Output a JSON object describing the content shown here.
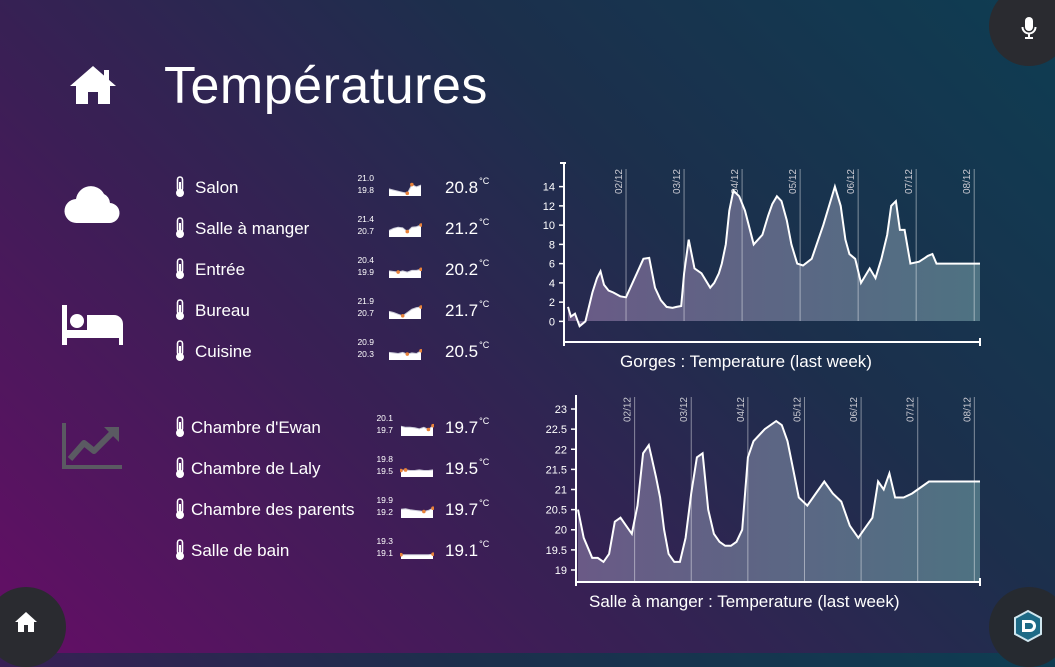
{
  "page": {
    "title": "Températures"
  },
  "sidebar": {
    "icons": [
      "home-icon",
      "cloud-icon",
      "bed-icon",
      "chart-trend-icon"
    ]
  },
  "corners": {
    "top_right": "microphone-icon",
    "bottom_left": "home-icon",
    "bottom_right": "app-logo-icon"
  },
  "unit": "°C",
  "rooms_group1": [
    {
      "name": "Salon",
      "max": "21.0",
      "min": "19.8",
      "value": "20.8",
      "spark": [
        0.55,
        0.45,
        0.35,
        0.25,
        0.15,
        0.95,
        0.75,
        0.9
      ]
    },
    {
      "name": "Salle à manger",
      "max": "21.4",
      "min": "20.7",
      "value": "21.2",
      "spark": [
        0.5,
        0.7,
        0.8,
        0.75,
        0.4,
        0.8,
        0.85,
        1.0
      ]
    },
    {
      "name": "Entrée",
      "max": "20.4",
      "min": "19.9",
      "value": "20.2",
      "spark": [
        0.55,
        0.5,
        0.45,
        0.55,
        0.45,
        0.6,
        0.6,
        0.7
      ]
    },
    {
      "name": "Bureau",
      "max": "21.9",
      "min": "20.7",
      "value": "21.7",
      "spark": [
        0.6,
        0.5,
        0.35,
        0.2,
        0.5,
        0.8,
        0.95,
        1.0
      ]
    },
    {
      "name": "Cuisine",
      "max": "20.9",
      "min": "20.3",
      "value": "20.5",
      "spark": [
        0.6,
        0.55,
        0.5,
        0.6,
        0.45,
        0.55,
        0.5,
        0.75
      ]
    }
  ],
  "rooms_group2": [
    {
      "name": "Chambre d'Ewan",
      "max": "20.1",
      "min": "19.7",
      "value": "19.7",
      "spark": [
        0.8,
        0.7,
        0.7,
        0.65,
        0.55,
        0.7,
        0.5,
        0.85
      ]
    },
    {
      "name": "Chambre de Laly",
      "max": "19.8",
      "min": "19.5",
      "value": "19.5",
      "spark": [
        0.5,
        0.55,
        0.5,
        0.5,
        0.55,
        0.5,
        0.5,
        0.55
      ]
    },
    {
      "name": "Chambre des parents",
      "max": "19.9",
      "min": "19.2",
      "value": "19.7",
      "spark": [
        0.7,
        0.75,
        0.65,
        0.6,
        0.55,
        0.5,
        0.6,
        0.8
      ]
    },
    {
      "name": "Salle de bain",
      "max": "19.3",
      "min": "19.1",
      "value": "19.1",
      "spark": [
        0.3,
        0.3,
        0.3,
        0.3,
        0.3,
        0.3,
        0.3,
        0.35
      ]
    }
  ],
  "chart_data": [
    {
      "type": "area",
      "title": "Gorges : Temperature (last week)",
      "x_tick_labels": [
        "02/12",
        "03/12",
        "04/12",
        "05/12",
        "06/12",
        "07/12",
        "08/12"
      ],
      "ylim": [
        -1,
        15
      ],
      "y_ticks": [
        0,
        2,
        4,
        6,
        8,
        10,
        12,
        14
      ],
      "x_day_range": [
        1.0,
        8.1
      ],
      "x": [
        1.0,
        1.05,
        1.12,
        1.2,
        1.3,
        1.42,
        1.5,
        1.56,
        1.62,
        1.7,
        1.78,
        1.9,
        2.0,
        2.15,
        2.3,
        2.4,
        2.5,
        2.6,
        2.7,
        2.8,
        2.87,
        2.95,
        3.0,
        3.08,
        3.18,
        3.3,
        3.45,
        3.52,
        3.6,
        3.65,
        3.72,
        3.78,
        3.85,
        3.95,
        4.05,
        4.2,
        4.35,
        4.45,
        4.52,
        4.6,
        4.68,
        4.77,
        4.85,
        4.95,
        5.05,
        5.2,
        5.4,
        5.6,
        5.7,
        5.78,
        5.85,
        5.95,
        6.05,
        6.2,
        6.3,
        6.4,
        6.5,
        6.57,
        6.65,
        6.72,
        6.8,
        6.9,
        7.05,
        7.1,
        7.15,
        7.2,
        7.28,
        7.35,
        7.45,
        7.52,
        7.58,
        7.63,
        7.7,
        7.75,
        7.8,
        7.85,
        7.9,
        8.0,
        8.05,
        8.1
      ],
      "y": [
        1.5,
        0.5,
        0.8,
        -0.5,
        0.0,
        3.0,
        4.5,
        5.2,
        3.8,
        3.2,
        3.0,
        2.6,
        2.5,
        4.5,
        6.5,
        6.6,
        3.5,
        2.2,
        1.5,
        1.4,
        1.5,
        1.6,
        5.0,
        8.5,
        5.5,
        5.0,
        3.5,
        4.0,
        5.0,
        6.0,
        8.0,
        11.5,
        13.6,
        13.0,
        11.5,
        8.0,
        9.0,
        11.0,
        12.2,
        13.0,
        12.5,
        10.5,
        8.0,
        6.0,
        5.8,
        6.5,
        10.0,
        14.0,
        12.0,
        8.5,
        7.0,
        6.5,
        4.0,
        5.5,
        4.5,
        6.5,
        9.0,
        12.0,
        12.5,
        9.5,
        9.5,
        6.0,
        6.2,
        6.4,
        6.6,
        6.8,
        7.0,
        6.0,
        6.0,
        6.0,
        6.0,
        6.0,
        6.0,
        6.0,
        6.0,
        6.0,
        6.0,
        6.0,
        6.0,
        6.0
      ]
    },
    {
      "type": "area",
      "title": "Salle à manger : Temperature (last week)",
      "x_tick_labels": [
        "02/12",
        "03/12",
        "04/12",
        "05/12",
        "06/12",
        "07/12",
        "08/12"
      ],
      "ylim": [
        18.9,
        23.1
      ],
      "y_ticks": [
        19,
        19.5,
        20,
        20.5,
        21,
        21.5,
        22,
        22.5,
        23
      ],
      "x_day_range": [
        1.0,
        8.1
      ],
      "x": [
        1.0,
        1.1,
        1.25,
        1.35,
        1.45,
        1.55,
        1.65,
        1.75,
        1.85,
        1.95,
        2.05,
        2.15,
        2.25,
        2.3,
        2.38,
        2.45,
        2.52,
        2.6,
        2.7,
        2.8,
        2.9,
        3.0,
        3.1,
        3.2,
        3.3,
        3.4,
        3.5,
        3.6,
        3.7,
        3.8,
        3.9,
        4.0,
        4.1,
        4.3,
        4.5,
        4.6,
        4.7,
        4.8,
        4.9,
        5.05,
        5.2,
        5.35,
        5.5,
        5.65,
        5.8,
        5.95,
        6.05,
        6.2,
        6.3,
        6.4,
        6.5,
        6.6,
        6.75,
        6.9,
        7.0,
        7.1,
        7.2,
        7.3,
        7.4,
        7.5,
        7.6,
        7.7,
        7.8,
        7.9,
        8.0,
        8.1
      ],
      "y": [
        20.5,
        19.8,
        19.3,
        19.3,
        19.2,
        19.4,
        20.2,
        20.3,
        20.1,
        19.9,
        20.6,
        21.9,
        22.1,
        21.8,
        21.3,
        20.8,
        20.0,
        19.4,
        19.2,
        19.2,
        19.8,
        20.9,
        21.8,
        21.9,
        20.5,
        19.9,
        19.7,
        19.6,
        19.6,
        19.7,
        20.0,
        21.8,
        22.2,
        22.5,
        22.7,
        22.6,
        22.2,
        21.5,
        20.8,
        20.6,
        20.9,
        21.2,
        20.9,
        20.7,
        20.1,
        19.8,
        20.0,
        20.3,
        21.2,
        21.0,
        21.4,
        20.8,
        20.8,
        20.9,
        21.0,
        21.1,
        21.2,
        21.2,
        21.2,
        21.2,
        21.2,
        21.2,
        21.2,
        21.2,
        21.2,
        21.2
      ]
    }
  ]
}
